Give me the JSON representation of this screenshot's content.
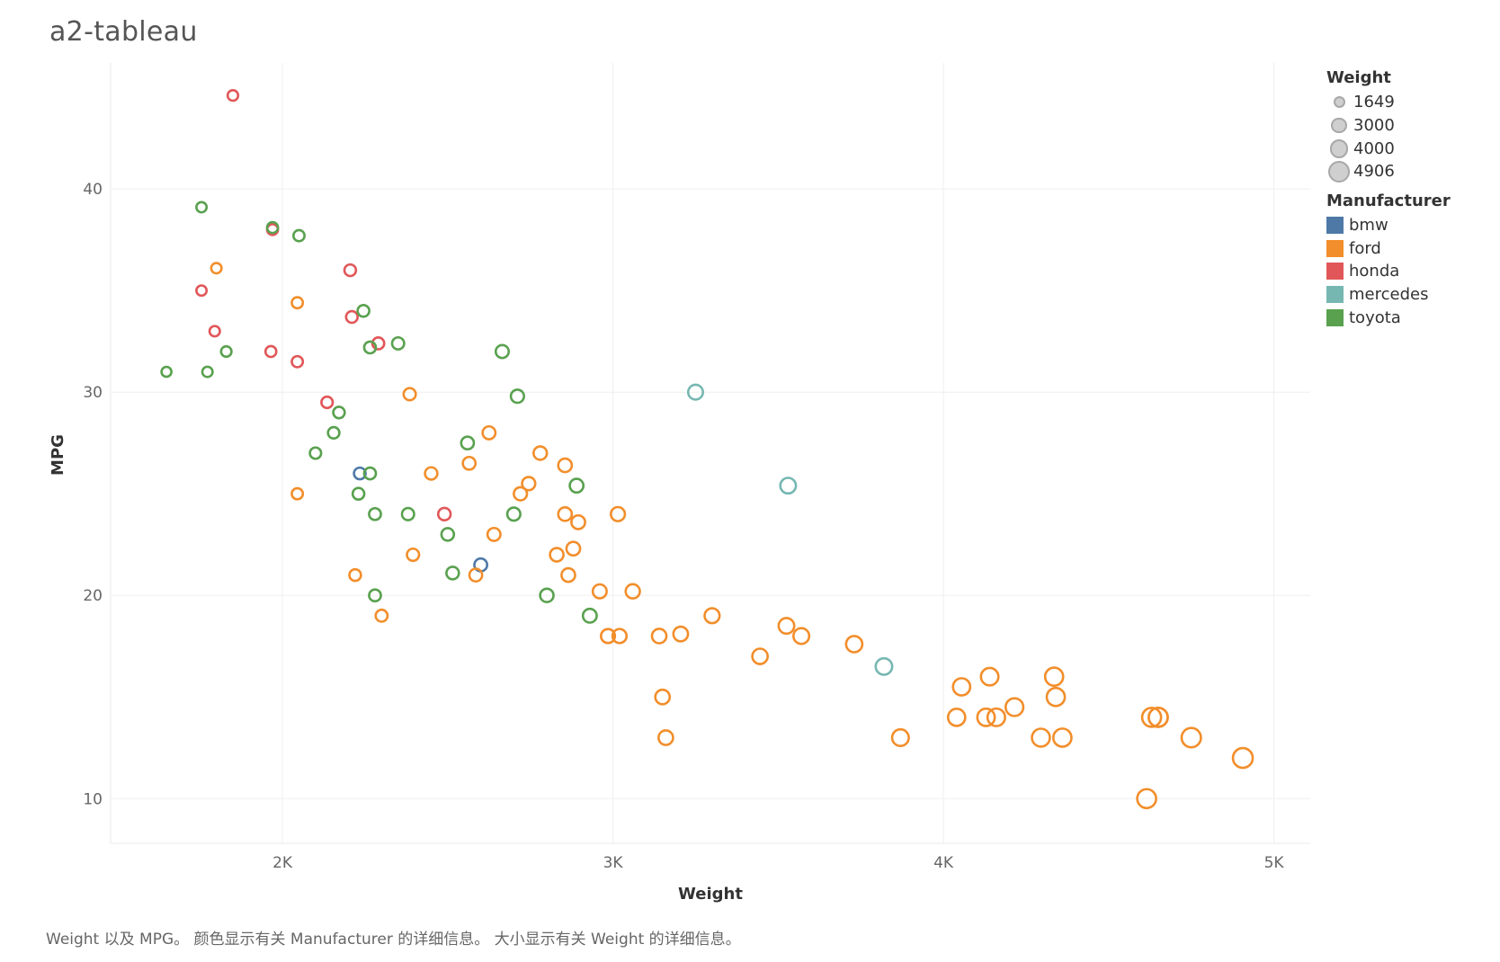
{
  "title": "a2-tableau",
  "caption": "Weight 以及 MPG。 颜色显示有关 Manufacturer 的详细信息。 大小显示有关 Weight 的详细信息。",
  "legend": {
    "size_title": "Weight",
    "size_items": [
      "1649",
      "3000",
      "4000",
      "4906"
    ],
    "color_title": "Manufacturer",
    "color_items": [
      {
        "label": "bmw",
        "color": "#4e79a7"
      },
      {
        "label": "ford",
        "color": "#f28e2b"
      },
      {
        "label": "honda",
        "color": "#e15759"
      },
      {
        "label": "mercedes",
        "color": "#76b7b2"
      },
      {
        "label": "toyota",
        "color": "#59a14f"
      }
    ]
  },
  "chart_data": {
    "type": "scatter",
    "title": "a2-tableau",
    "xlabel": "Weight",
    "ylabel": "MPG",
    "xlim": [
      1480,
      5110
    ],
    "ylim": [
      7.8,
      46.2
    ],
    "xticks": [
      2000,
      3000,
      4000,
      5000
    ],
    "xtick_labels": [
      "2K",
      "3K",
      "4K",
      "5K"
    ],
    "yticks": [
      10,
      20,
      30,
      40
    ],
    "ytick_labels": [
      "10",
      "20",
      "30",
      "40"
    ],
    "size_field": "Weight",
    "color_field": "Manufacturer",
    "series": [
      {
        "name": "bmw",
        "color": "#4e79a7",
        "points": [
          [
            2234,
            26
          ],
          [
            2600,
            21.5
          ]
        ]
      },
      {
        "name": "honda",
        "color": "#e15759",
        "points": [
          [
            1850,
            44.6
          ],
          [
            1970,
            38
          ],
          [
            1755,
            35
          ],
          [
            1795,
            33
          ],
          [
            1965,
            32
          ],
          [
            2045,
            31.5
          ],
          [
            2205,
            36
          ],
          [
            2210,
            33.7
          ],
          [
            2290,
            32.4
          ],
          [
            2135,
            29.5
          ],
          [
            2490,
            24
          ]
        ]
      },
      {
        "name": "toyota",
        "color": "#59a14f",
        "points": [
          [
            1755,
            39.1
          ],
          [
            1970,
            38.1
          ],
          [
            2050,
            37.7
          ],
          [
            1649,
            31
          ],
          [
            1773,
            31
          ],
          [
            1830,
            32
          ],
          [
            2245,
            34
          ],
          [
            2265,
            32.2
          ],
          [
            2350,
            32.4
          ],
          [
            2665,
            32
          ],
          [
            2711,
            29.8
          ],
          [
            2171,
            29
          ],
          [
            2155,
            28
          ],
          [
            2100,
            27
          ],
          [
            2265,
            26
          ],
          [
            2230,
            25
          ],
          [
            2280,
            24
          ],
          [
            2380,
            24
          ],
          [
            2560,
            27.5
          ],
          [
            2890,
            25.4
          ],
          [
            2700,
            24
          ],
          [
            2500,
            23
          ],
          [
            2515,
            21.1
          ],
          [
            2280,
            20
          ],
          [
            2800,
            20
          ],
          [
            2930,
            19
          ]
        ]
      },
      {
        "name": "mercedes",
        "color": "#76b7b2",
        "points": [
          [
            3250,
            30
          ],
          [
            3530,
            25.4
          ],
          [
            3820,
            16.5
          ]
        ]
      },
      {
        "name": "ford",
        "color": "#f28e2b",
        "points": [
          [
            1800,
            36.1
          ],
          [
            2045,
            34.4
          ],
          [
            2045,
            25
          ],
          [
            2385,
            29.9
          ],
          [
            2450,
            26
          ],
          [
            2565,
            26.5
          ],
          [
            2625,
            28
          ],
          [
            2780,
            27
          ],
          [
            2855,
            26.4
          ],
          [
            2745,
            25.5
          ],
          [
            2720,
            25
          ],
          [
            2855,
            24
          ],
          [
            2895,
            23.6
          ],
          [
            3015,
            24
          ],
          [
            2640,
            23
          ],
          [
            2395,
            22
          ],
          [
            2830,
            22
          ],
          [
            2880,
            22.3
          ],
          [
            2220,
            21
          ],
          [
            2300,
            19
          ],
          [
            2585,
            21
          ],
          [
            2865,
            21
          ],
          [
            2960,
            20.2
          ],
          [
            3060,
            20.2
          ],
          [
            2985,
            18
          ],
          [
            3020,
            18
          ],
          [
            3140,
            18
          ],
          [
            3205,
            18.1
          ],
          [
            3300,
            19
          ],
          [
            3150,
            15
          ],
          [
            3160,
            13
          ],
          [
            3445,
            17
          ],
          [
            3525,
            18.5
          ],
          [
            3570,
            18
          ],
          [
            3730,
            17.6
          ],
          [
            3870,
            13
          ],
          [
            4040,
            14
          ],
          [
            4055,
            15.5
          ],
          [
            4129,
            14
          ],
          [
            4140,
            16
          ],
          [
            4160,
            14
          ],
          [
            4215,
            14.5
          ],
          [
            4295,
            13
          ],
          [
            4335,
            16
          ],
          [
            4340,
            15
          ],
          [
            4360,
            13
          ],
          [
            4615,
            10
          ],
          [
            4630,
            14
          ],
          [
            4650,
            14
          ],
          [
            4650,
            14
          ],
          [
            4750,
            13
          ],
          [
            4906,
            12
          ]
        ]
      }
    ]
  }
}
